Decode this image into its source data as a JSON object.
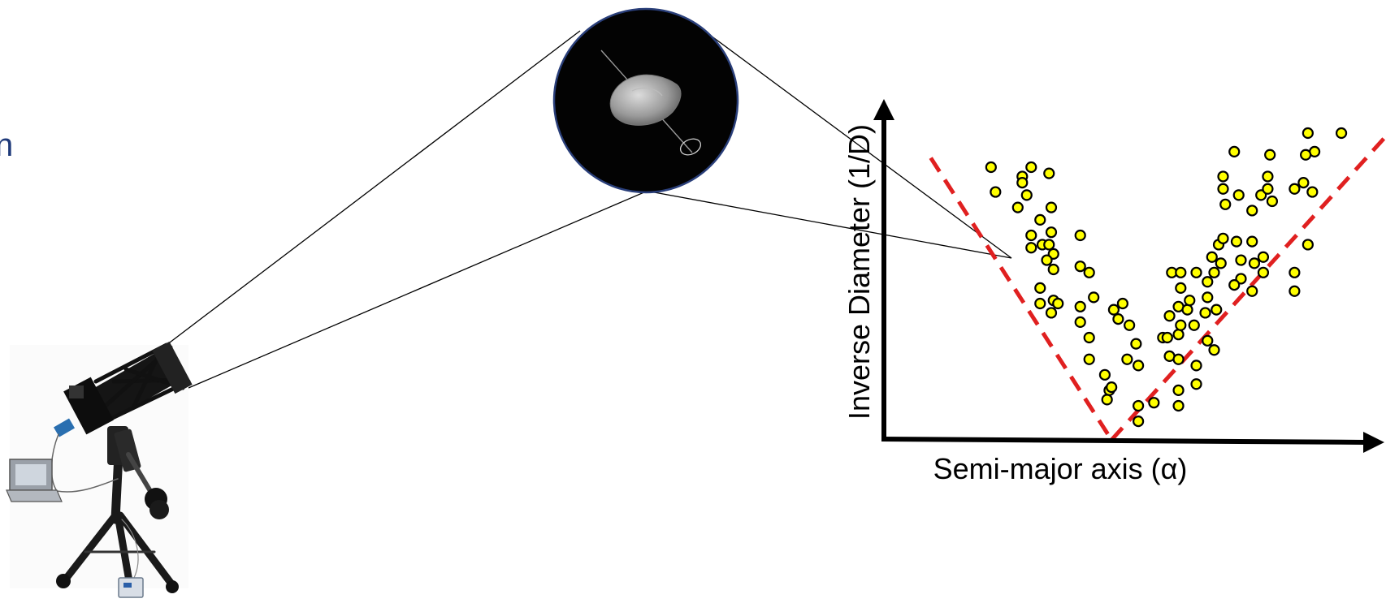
{
  "edge_text": "n",
  "colors": {
    "point_fill": "#ffff00",
    "point_stroke": "#000000",
    "trend": "#e02020",
    "axis": "#000000",
    "edge_text": "#1f3a7a"
  },
  "icons": {
    "telescope": "telescope-icon",
    "laptop": "laptop-icon",
    "asteroid": "asteroid-icon"
  },
  "chart_data": {
    "type": "scatter",
    "xlabel": "Semi-major axis (α)",
    "ylabel": "Inverse Diameter (1/D)",
    "highlighted_point_index": 27,
    "points": [
      [
        4.8,
        8.8
      ],
      [
        5.0,
        8.0
      ],
      [
        6.2,
        8.5
      ],
      [
        6.6,
        8.8
      ],
      [
        6.4,
        7.9
      ],
      [
        6.0,
        7.5
      ],
      [
        6.2,
        8.3
      ],
      [
        7.4,
        8.6
      ],
      [
        7.5,
        7.5
      ],
      [
        7.0,
        7.1
      ],
      [
        6.6,
        6.6
      ],
      [
        6.6,
        6.2
      ],
      [
        7.1,
        6.3
      ],
      [
        7.4,
        6.3
      ],
      [
        7.5,
        6.7
      ],
      [
        7.6,
        6.0
      ],
      [
        7.6,
        5.5
      ],
      [
        7.0,
        4.9
      ],
      [
        7.0,
        4.4
      ],
      [
        7.6,
        4.5
      ],
      [
        7.8,
        4.4
      ],
      [
        7.5,
        4.1
      ],
      [
        8.8,
        6.6
      ],
      [
        8.8,
        5.6
      ],
      [
        9.2,
        5.4
      ],
      [
        9.4,
        4.6
      ],
      [
        8.8,
        4.3
      ],
      [
        7.3,
        5.8
      ],
      [
        8.8,
        3.8
      ],
      [
        9.2,
        3.3
      ],
      [
        9.2,
        2.6
      ],
      [
        9.9,
        2.1
      ],
      [
        10.1,
        1.6
      ],
      [
        10.0,
        1.3
      ],
      [
        10.2,
        1.7
      ],
      [
        10.5,
        3.9
      ],
      [
        10.7,
        4.4
      ],
      [
        10.3,
        4.2
      ],
      [
        11.0,
        3.7
      ],
      [
        11.3,
        3.1
      ],
      [
        10.9,
        2.6
      ],
      [
        11.4,
        2.4
      ],
      [
        11.4,
        1.1
      ],
      [
        11.4,
        0.6
      ],
      [
        12.1,
        1.2
      ],
      [
        12.8,
        2.7
      ],
      [
        12.5,
        3.3
      ],
      [
        12.8,
        4.0
      ],
      [
        12.7,
        3.3
      ],
      [
        13.2,
        3.4
      ],
      [
        13.2,
        2.6
      ],
      [
        13.2,
        1.6
      ],
      [
        13.2,
        1.1
      ],
      [
        12.9,
        5.4
      ],
      [
        13.3,
        4.9
      ],
      [
        13.2,
        4.3
      ],
      [
        13.3,
        3.7
      ],
      [
        13.3,
        5.4
      ],
      [
        13.6,
        4.2
      ],
      [
        13.9,
        3.7
      ],
      [
        13.7,
        4.5
      ],
      [
        14.0,
        5.4
      ],
      [
        14.5,
        5.1
      ],
      [
        14.5,
        4.6
      ],
      [
        14.4,
        4.1
      ],
      [
        14.5,
        3.2
      ],
      [
        14.0,
        2.4
      ],
      [
        14.0,
        1.8
      ],
      [
        14.8,
        2.9
      ],
      [
        14.9,
        4.2
      ],
      [
        14.7,
        5.9
      ],
      [
        14.8,
        5.4
      ],
      [
        15.0,
        6.3
      ],
      [
        15.1,
        5.7
      ],
      [
        15.2,
        6.5
      ],
      [
        15.3,
        7.6
      ],
      [
        15.2,
        8.5
      ],
      [
        15.7,
        9.3
      ],
      [
        15.2,
        8.1
      ],
      [
        15.9,
        7.9
      ],
      [
        15.8,
        6.4
      ],
      [
        16.5,
        6.4
      ],
      [
        16.5,
        7.4
      ],
      [
        16.9,
        7.9
      ],
      [
        17.2,
        8.5
      ],
      [
        17.3,
        9.2
      ],
      [
        17.2,
        8.1
      ],
      [
        17.0,
        5.9
      ],
      [
        17.4,
        7.7
      ],
      [
        18.4,
        8.1
      ],
      [
        18.8,
        8.3
      ],
      [
        19.0,
        6.3
      ],
      [
        19.2,
        8.0
      ],
      [
        19.0,
        9.9
      ],
      [
        19.3,
        9.3
      ],
      [
        18.9,
        9.2
      ],
      [
        20.5,
        9.9
      ],
      [
        16.0,
        5.8
      ],
      [
        17.0,
        5.4
      ],
      [
        16.6,
        5.7
      ],
      [
        16.5,
        4.8
      ],
      [
        18.4,
        4.8
      ],
      [
        18.4,
        5.4
      ],
      [
        16.0,
        5.2
      ],
      [
        15.7,
        5.0
      ]
    ],
    "trend_lines": [
      {
        "x": [
          2.1,
          10.2
        ],
        "y": [
          9.1,
          0.0
        ]
      },
      {
        "x": [
          10.2,
          22.5
        ],
        "y": [
          0.0,
          9.8
        ]
      }
    ],
    "xlim": [
      0,
      22.5
    ],
    "ylim": [
      0,
      11
    ]
  }
}
